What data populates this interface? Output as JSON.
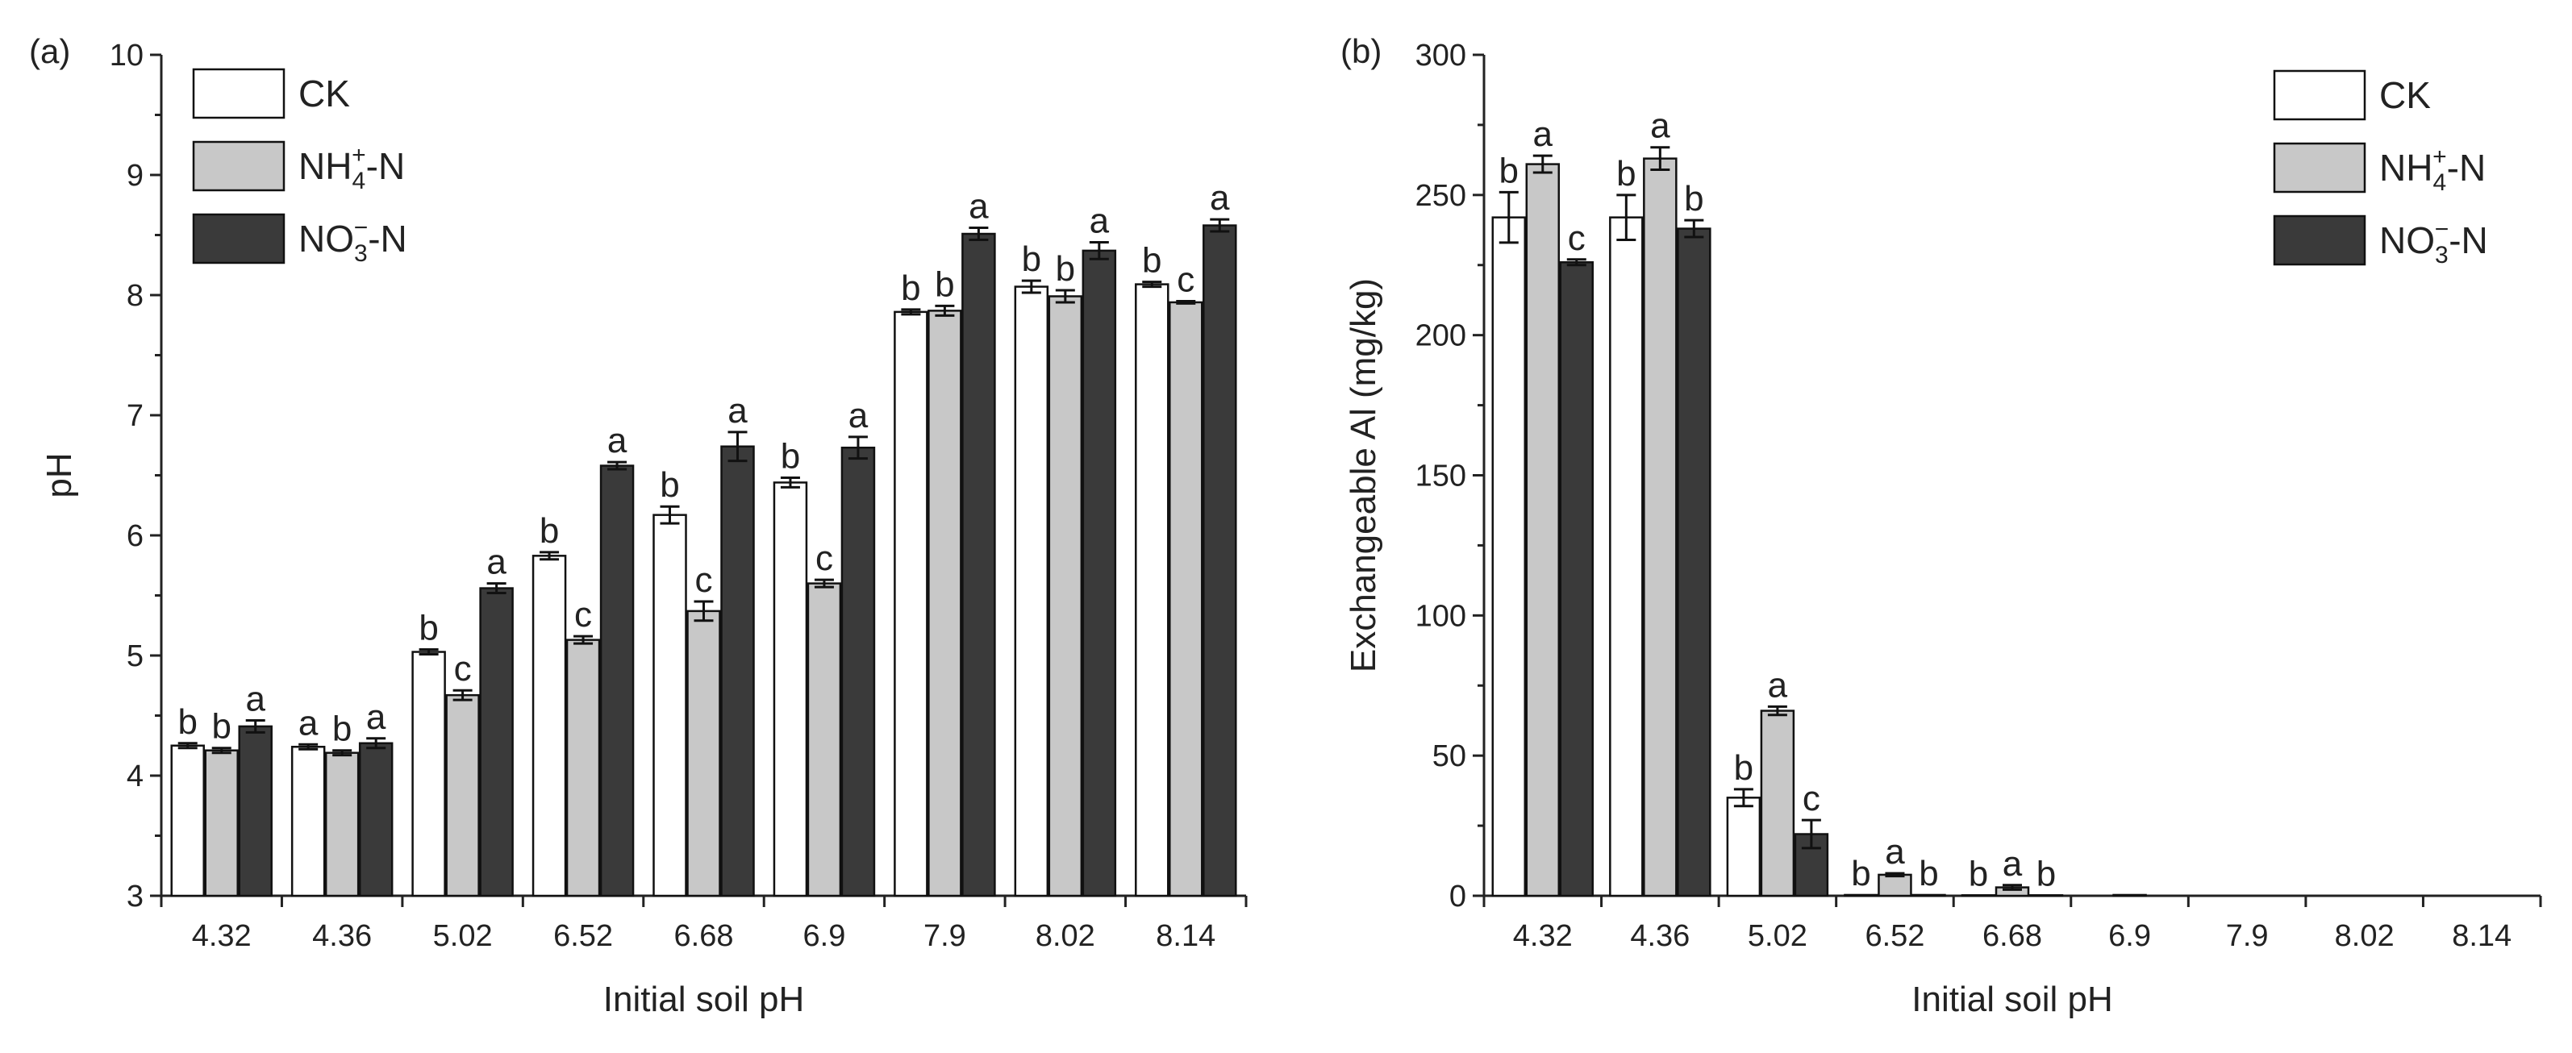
{
  "chart_data": [
    {
      "type": "bar",
      "panel_label": "(a)",
      "title": "",
      "xlabel": "Initial soil pH",
      "ylabel": "pH",
      "categories": [
        "4.32",
        "4.36",
        "5.02",
        "6.52",
        "6.68",
        "6.9",
        "7.9",
        "8.02",
        "8.14"
      ],
      "ylim": [
        3,
        10
      ],
      "yticks": [
        "3",
        "4",
        "5",
        "6",
        "7",
        "8",
        "9",
        "10"
      ],
      "legend_position": "top-left",
      "series": [
        {
          "name": "CK",
          "legend_main": "CK",
          "fill": "#ffffff",
          "values": [
            4.25,
            4.24,
            5.03,
            5.83,
            6.17,
            6.44,
            7.86,
            8.07,
            8.09
          ],
          "errors": [
            0.02,
            0.02,
            0.02,
            0.03,
            0.07,
            0.04,
            0.02,
            0.05,
            0.02
          ],
          "letters": [
            "b",
            "a",
            "b",
            "b",
            "b",
            "b",
            "b",
            "b",
            "b"
          ]
        },
        {
          "name": "NH4+-N",
          "legend_main": "NH",
          "legend_sub": "4",
          "legend_sup": "+",
          "legend_suffix": "-N",
          "fill": "#c8c8c8",
          "values": [
            4.21,
            4.19,
            4.67,
            5.13,
            5.37,
            5.6,
            7.87,
            7.99,
            7.94
          ],
          "errors": [
            0.02,
            0.02,
            0.04,
            0.03,
            0.08,
            0.03,
            0.04,
            0.05,
            0.01
          ],
          "letters": [
            "b",
            "b",
            "c",
            "c",
            "c",
            "c",
            "b",
            "b",
            "c"
          ]
        },
        {
          "name": "NO3--N",
          "legend_main": "NO",
          "legend_sub": "3",
          "legend_sup": "−",
          "legend_suffix": "-N",
          "fill": "#3a3a3a",
          "values": [
            4.41,
            4.27,
            5.56,
            6.58,
            6.74,
            6.73,
            8.51,
            8.37,
            8.58
          ],
          "errors": [
            0.05,
            0.04,
            0.04,
            0.03,
            0.12,
            0.09,
            0.05,
            0.07,
            0.05
          ],
          "letters": [
            "a",
            "a",
            "a",
            "a",
            "a",
            "a",
            "a",
            "a",
            "a"
          ]
        }
      ]
    },
    {
      "type": "bar",
      "panel_label": "(b)",
      "title": "",
      "xlabel": "Initial soil pH",
      "ylabel": "Exchangeable Al (mg/kg)",
      "categories": [
        "4.32",
        "4.36",
        "5.02",
        "6.52",
        "6.68",
        "6.9",
        "7.9",
        "8.02",
        "8.14"
      ],
      "ylim": [
        0,
        300
      ],
      "yticks": [
        "0",
        "50",
        "100",
        "150",
        "200",
        "250",
        "300"
      ],
      "legend_position": "top-right",
      "series": [
        {
          "name": "CK",
          "legend_main": "CK",
          "fill": "#ffffff",
          "values": [
            242,
            242,
            35,
            0.3,
            0.2,
            0,
            0,
            0,
            0
          ],
          "errors": [
            9,
            8,
            3,
            0,
            0,
            0,
            0,
            0,
            0
          ],
          "letters": [
            "b",
            "b",
            "b",
            "b",
            "b",
            "",
            "",
            "",
            ""
          ]
        },
        {
          "name": "NH4+-N",
          "legend_main": "NH",
          "legend_sub": "4",
          "legend_sup": "+",
          "legend_suffix": "-N",
          "fill": "#c8c8c8",
          "values": [
            261,
            263,
            66,
            7.5,
            3,
            0.3,
            0,
            0,
            0
          ],
          "errors": [
            3,
            4,
            1.5,
            0.5,
            0.8,
            0,
            0,
            0,
            0
          ],
          "letters": [
            "a",
            "a",
            "a",
            "a",
            "a",
            "",
            "",
            "",
            ""
          ]
        },
        {
          "name": "NO3--N",
          "legend_main": "NO",
          "legend_sub": "3",
          "legend_sup": "−",
          "legend_suffix": "-N",
          "fill": "#3a3a3a",
          "values": [
            226,
            238,
            22,
            0.3,
            0.2,
            0,
            0,
            0,
            0
          ],
          "errors": [
            1,
            3,
            5,
            0,
            0,
            0,
            0,
            0,
            0
          ],
          "letters": [
            "c",
            "b",
            "c",
            "b",
            "b",
            "",
            "",
            "",
            ""
          ]
        }
      ]
    }
  ]
}
